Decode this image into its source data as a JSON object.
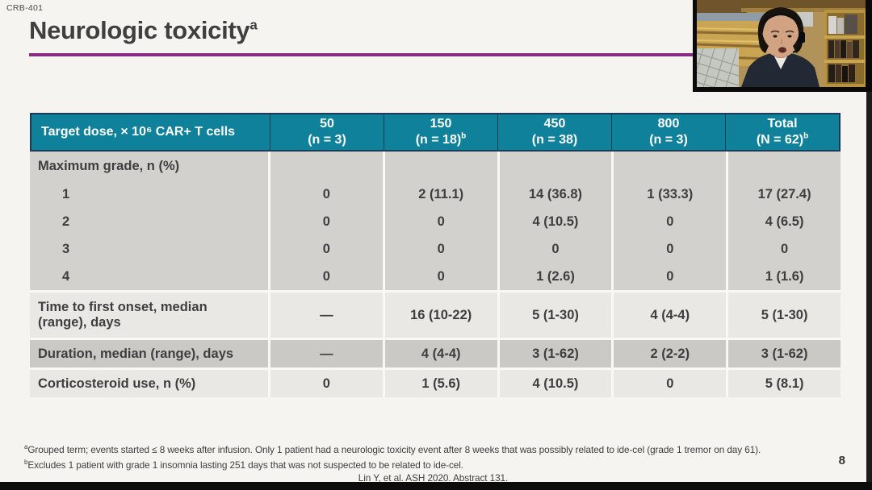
{
  "slide": {
    "study_label": "CRB-401",
    "title": "Neurologic toxicity",
    "title_superscript": "a",
    "page_number": "8"
  },
  "colors": {
    "header_teal": "#0f819a",
    "header_border": "#1d3a55",
    "accent_purple": "#8a2a85",
    "row_mid": "#d3d1ce",
    "row_light": "#e9e8e5",
    "row_dark": "#cbc9c6"
  },
  "table": {
    "header": {
      "row_label": "Target dose, × 10⁶ CAR+ T cells",
      "columns": [
        {
          "line1": "50",
          "line2": "(n = 3)",
          "sup": ""
        },
        {
          "line1": "150",
          "line2": "(n = 18)",
          "sup": "b"
        },
        {
          "line1": "450",
          "line2": "(n = 38)",
          "sup": ""
        },
        {
          "line1": "800",
          "line2": "(n = 3)",
          "sup": ""
        },
        {
          "line1": "Total",
          "line2": "(N = 62)",
          "sup": "b"
        }
      ]
    },
    "rows": [
      {
        "label": "Maximum grade, n (%)",
        "values": [
          "",
          "",
          "",
          "",
          ""
        ],
        "shade": "mid",
        "subhead": true
      },
      {
        "label": "1",
        "indent": true,
        "values": [
          "0",
          "2 (11.1)",
          "14 (36.8)",
          "1 (33.3)",
          "17 (27.4)"
        ],
        "shade": "mid"
      },
      {
        "label": "2",
        "indent": true,
        "values": [
          "0",
          "0",
          "4 (10.5)",
          "0",
          "4 (6.5)"
        ],
        "shade": "mid"
      },
      {
        "label": "3",
        "indent": true,
        "values": [
          "0",
          "0",
          "0",
          "0",
          "0"
        ],
        "shade": "mid"
      },
      {
        "label": "4",
        "indent": true,
        "values": [
          "0",
          "0",
          "1 (2.6)",
          "0",
          "1 (1.6)"
        ],
        "shade": "mid"
      },
      {
        "label": "Time to first onset, median (range), days",
        "values": [
          "—",
          "16 (10-22)",
          "5 (1-30)",
          "4 (4-4)",
          "5 (1-30)"
        ],
        "shade": "light",
        "gap": true,
        "tall": true
      },
      {
        "label": "Duration, median (range), days",
        "values": [
          "—",
          "4 (4-4)",
          "3 (1-62)",
          "2 (2-2)",
          "3 (1-62)"
        ],
        "shade": "dark",
        "gap": true
      },
      {
        "label": "Corticosteroid use, n (%)",
        "values": [
          "0",
          "1 (5.6)",
          "4 (10.5)",
          "0",
          "5 (8.1)"
        ],
        "shade": "light",
        "gap": true
      }
    ]
  },
  "footnotes": [
    {
      "marker": "a",
      "text": "Grouped term; events started ≤ 8 weeks after infusion. Only 1 patient had a neurologic toxicity event after 8 weeks that was possibly related to ide-cel (grade 1 tremor on day 61)."
    },
    {
      "marker": "b",
      "text": "Excludes 1 patient with grade 1 insomnia lasting 251 days that was not suspected to be related to ide-cel."
    }
  ],
  "citation": "Lin Y, et al. ASH 2020. Abstract 131."
}
